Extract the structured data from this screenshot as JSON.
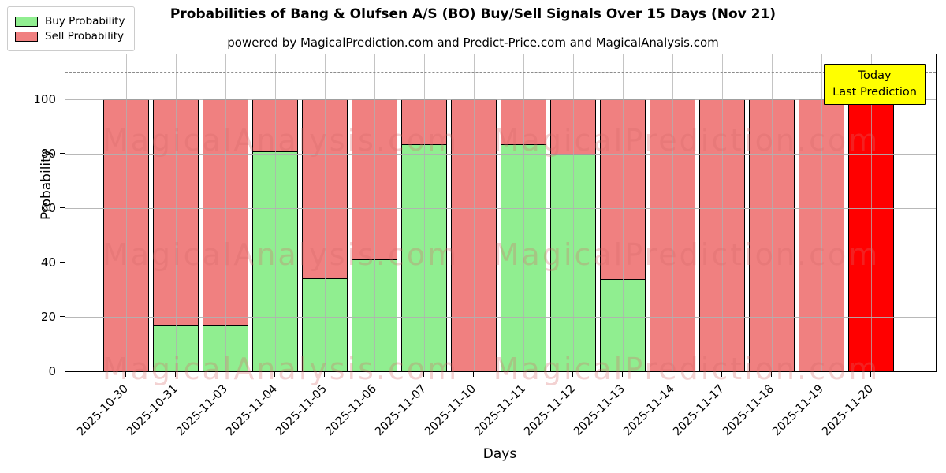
{
  "title": "Probabilities of Bang & Olufsen A/S (BO) Buy/Sell Signals Over 15 Days (Nov 21)",
  "subtitle": "powered by MagicalPrediction.com and Predict-Price.com and MagicalAnalysis.com",
  "annotation": {
    "lines": [
      "Today",
      "Last Prediction"
    ],
    "bg_color": "#FFFF00",
    "border_color": "#000000"
  },
  "legend": {
    "buy_label": "Buy Probability",
    "sell_label": "Sell Probability"
  },
  "chart_data": {
    "type": "bar",
    "stacked": true,
    "title": "Probabilities of Bang & Olufsen A/S (BO) Buy/Sell Signals Over 15 Days (Nov 21)",
    "xlabel": "Days",
    "ylabel": "Probability",
    "categories": [
      "2025-10-30",
      "2025-10-31",
      "2025-11-03",
      "2025-11-04",
      "2025-11-05",
      "2025-11-06",
      "2025-11-07",
      "2025-11-10",
      "2025-11-11",
      "2025-11-12",
      "2025-11-13",
      "2025-11-14",
      "2025-11-17",
      "2025-11-18",
      "2025-11-19",
      "2025-11-20"
    ],
    "series": [
      {
        "name": "Buy Probability",
        "color": "#90EE90",
        "values": [
          0,
          17.2,
          17.2,
          80.8,
          34.3,
          41.2,
          83.5,
          0,
          83.4,
          80.0,
          34.0,
          0,
          0,
          0,
          0,
          0
        ]
      },
      {
        "name": "Sell Probability",
        "color": "#F08080",
        "values": [
          100,
          82.8,
          82.8,
          19.2,
          65.7,
          58.8,
          16.5,
          100,
          16.6,
          20.0,
          66.0,
          100,
          100,
          100,
          100,
          100
        ]
      }
    ],
    "last_bar_sell_color": "#FF0000",
    "yticks": [
      0,
      20,
      40,
      60,
      80,
      100
    ],
    "ylim": [
      0,
      116.5
    ],
    "dashed_line_y": 110,
    "grid": true,
    "legend_position": "upper-left",
    "watermark_left": "MagicalAnalysis.com",
    "watermark_right": "MagicalPrediction.com"
  }
}
